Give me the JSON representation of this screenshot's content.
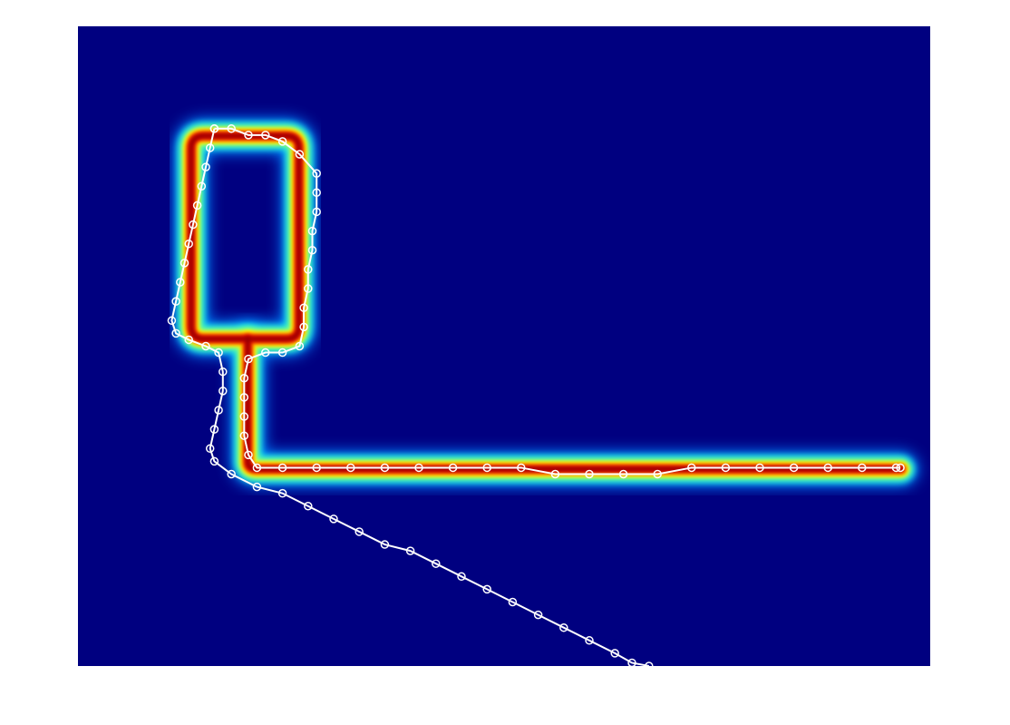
{
  "chart_data": {
    "type": "heatmap",
    "title": "",
    "xlabel": "",
    "ylabel": "",
    "axes_visible": false,
    "colormap": "jet",
    "background_color": "#000080",
    "heat_field": {
      "description_of_shape": "rounded rectangular loop joined by a vertical stem to a long horizontal corridor",
      "loop_rect": {
        "x0": 0.12,
        "y0": 0.16,
        "x1": 0.27,
        "y1": 0.5
      },
      "stem": {
        "x0": 0.19,
        "y0": 0.5,
        "x1": 0.2,
        "y1": 0.7
      },
      "corridor": {
        "x0": 0.19,
        "y0": 0.69,
        "x1": 0.97,
        "y1": 0.7
      }
    },
    "series": [
      {
        "marker": "circle",
        "color": "#ffffff",
        "points": [
          [
            0.16,
            0.16
          ],
          [
            0.18,
            0.16
          ],
          [
            0.2,
            0.17
          ],
          [
            0.22,
            0.17
          ],
          [
            0.24,
            0.18
          ],
          [
            0.26,
            0.2
          ],
          [
            0.28,
            0.23
          ],
          [
            0.28,
            0.26
          ],
          [
            0.28,
            0.29
          ],
          [
            0.275,
            0.32
          ],
          [
            0.275,
            0.35
          ],
          [
            0.27,
            0.38
          ],
          [
            0.27,
            0.41
          ],
          [
            0.265,
            0.44
          ],
          [
            0.265,
            0.47
          ],
          [
            0.26,
            0.5
          ],
          [
            0.24,
            0.51
          ],
          [
            0.22,
            0.51
          ],
          [
            0.2,
            0.52
          ],
          [
            0.195,
            0.55
          ],
          [
            0.195,
            0.58
          ],
          [
            0.195,
            0.61
          ],
          [
            0.195,
            0.64
          ],
          [
            0.2,
            0.67
          ],
          [
            0.21,
            0.69
          ],
          [
            0.24,
            0.69
          ],
          [
            0.28,
            0.69
          ],
          [
            0.32,
            0.69
          ],
          [
            0.36,
            0.69
          ],
          [
            0.4,
            0.69
          ],
          [
            0.44,
            0.69
          ],
          [
            0.48,
            0.69
          ],
          [
            0.52,
            0.69
          ],
          [
            0.56,
            0.7
          ],
          [
            0.6,
            0.7
          ],
          [
            0.64,
            0.7
          ],
          [
            0.68,
            0.7
          ],
          [
            0.72,
            0.69
          ],
          [
            0.76,
            0.69
          ],
          [
            0.8,
            0.69
          ],
          [
            0.84,
            0.69
          ],
          [
            0.88,
            0.69
          ],
          [
            0.92,
            0.69
          ],
          [
            0.96,
            0.69
          ],
          [
            0.965,
            0.69
          ]
        ]
      },
      {
        "marker": "circle",
        "color": "#ffffff",
        "points": [
          [
            0.16,
            0.16
          ],
          [
            0.155,
            0.19
          ],
          [
            0.15,
            0.22
          ],
          [
            0.145,
            0.25
          ],
          [
            0.14,
            0.28
          ],
          [
            0.135,
            0.31
          ],
          [
            0.13,
            0.34
          ],
          [
            0.125,
            0.37
          ],
          [
            0.12,
            0.4
          ],
          [
            0.115,
            0.43
          ],
          [
            0.11,
            0.46
          ],
          [
            0.115,
            0.48
          ],
          [
            0.13,
            0.49
          ],
          [
            0.15,
            0.5
          ],
          [
            0.165,
            0.51
          ],
          [
            0.17,
            0.54
          ],
          [
            0.17,
            0.57
          ],
          [
            0.165,
            0.6
          ],
          [
            0.16,
            0.63
          ],
          [
            0.155,
            0.66
          ],
          [
            0.16,
            0.68
          ],
          [
            0.18,
            0.7
          ],
          [
            0.21,
            0.72
          ],
          [
            0.24,
            0.73
          ],
          [
            0.27,
            0.75
          ],
          [
            0.3,
            0.77
          ],
          [
            0.33,
            0.79
          ],
          [
            0.36,
            0.81
          ],
          [
            0.39,
            0.82
          ],
          [
            0.42,
            0.84
          ],
          [
            0.45,
            0.86
          ],
          [
            0.48,
            0.88
          ],
          [
            0.51,
            0.9
          ],
          [
            0.54,
            0.92
          ],
          [
            0.57,
            0.94
          ],
          [
            0.6,
            0.96
          ],
          [
            0.63,
            0.98
          ],
          [
            0.65,
            0.995
          ],
          [
            0.67,
            1.0
          ]
        ]
      }
    ]
  }
}
